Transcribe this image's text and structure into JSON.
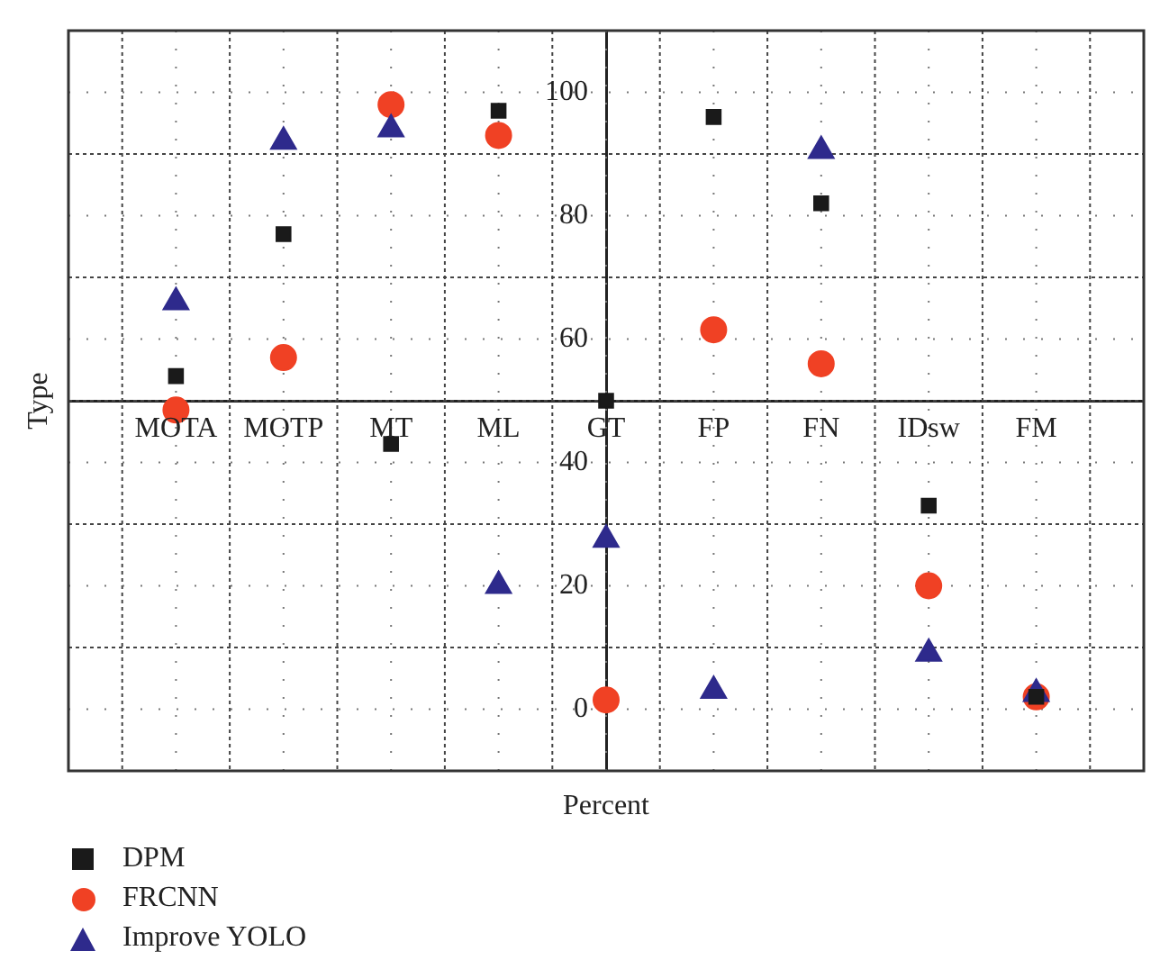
{
  "chart_data": {
    "type": "scatter",
    "xlabel": "Percent",
    "ylabel": "Type",
    "categories": [
      "MOTA",
      "MOTP",
      "MT",
      "ML",
      "GT",
      "FP",
      "FN",
      "IDsw",
      "FM"
    ],
    "ylim": [
      -10,
      110
    ],
    "yticks": [
      0,
      {
        "value": 10,
        "label": null
      },
      20,
      {
        "value": 30,
        "label": null
      },
      40,
      {
        "value": 50,
        "label": null
      },
      60,
      {
        "value": 70,
        "label": null
      },
      80,
      {
        "value": 90,
        "label": null
      },
      100
    ],
    "grid": true,
    "legend": "bottom left",
    "series": [
      {
        "name": "DPM",
        "color": "#1a1a1a",
        "marker": "square",
        "values": [
          54,
          77,
          43,
          97,
          50,
          96,
          82,
          33,
          2
        ]
      },
      {
        "name": "FRCNN",
        "color": "#f04124",
        "marker": "circle",
        "values": [
          48.5,
          57,
          98,
          93,
          1.5,
          61.5,
          56,
          20,
          2
        ]
      },
      {
        "name": "Improve YOLO",
        "color": "#2e2a8c",
        "marker": "triangle",
        "values": [
          66,
          92,
          94,
          20,
          27.5,
          3,
          90.5,
          9,
          2.5
        ]
      }
    ]
  }
}
